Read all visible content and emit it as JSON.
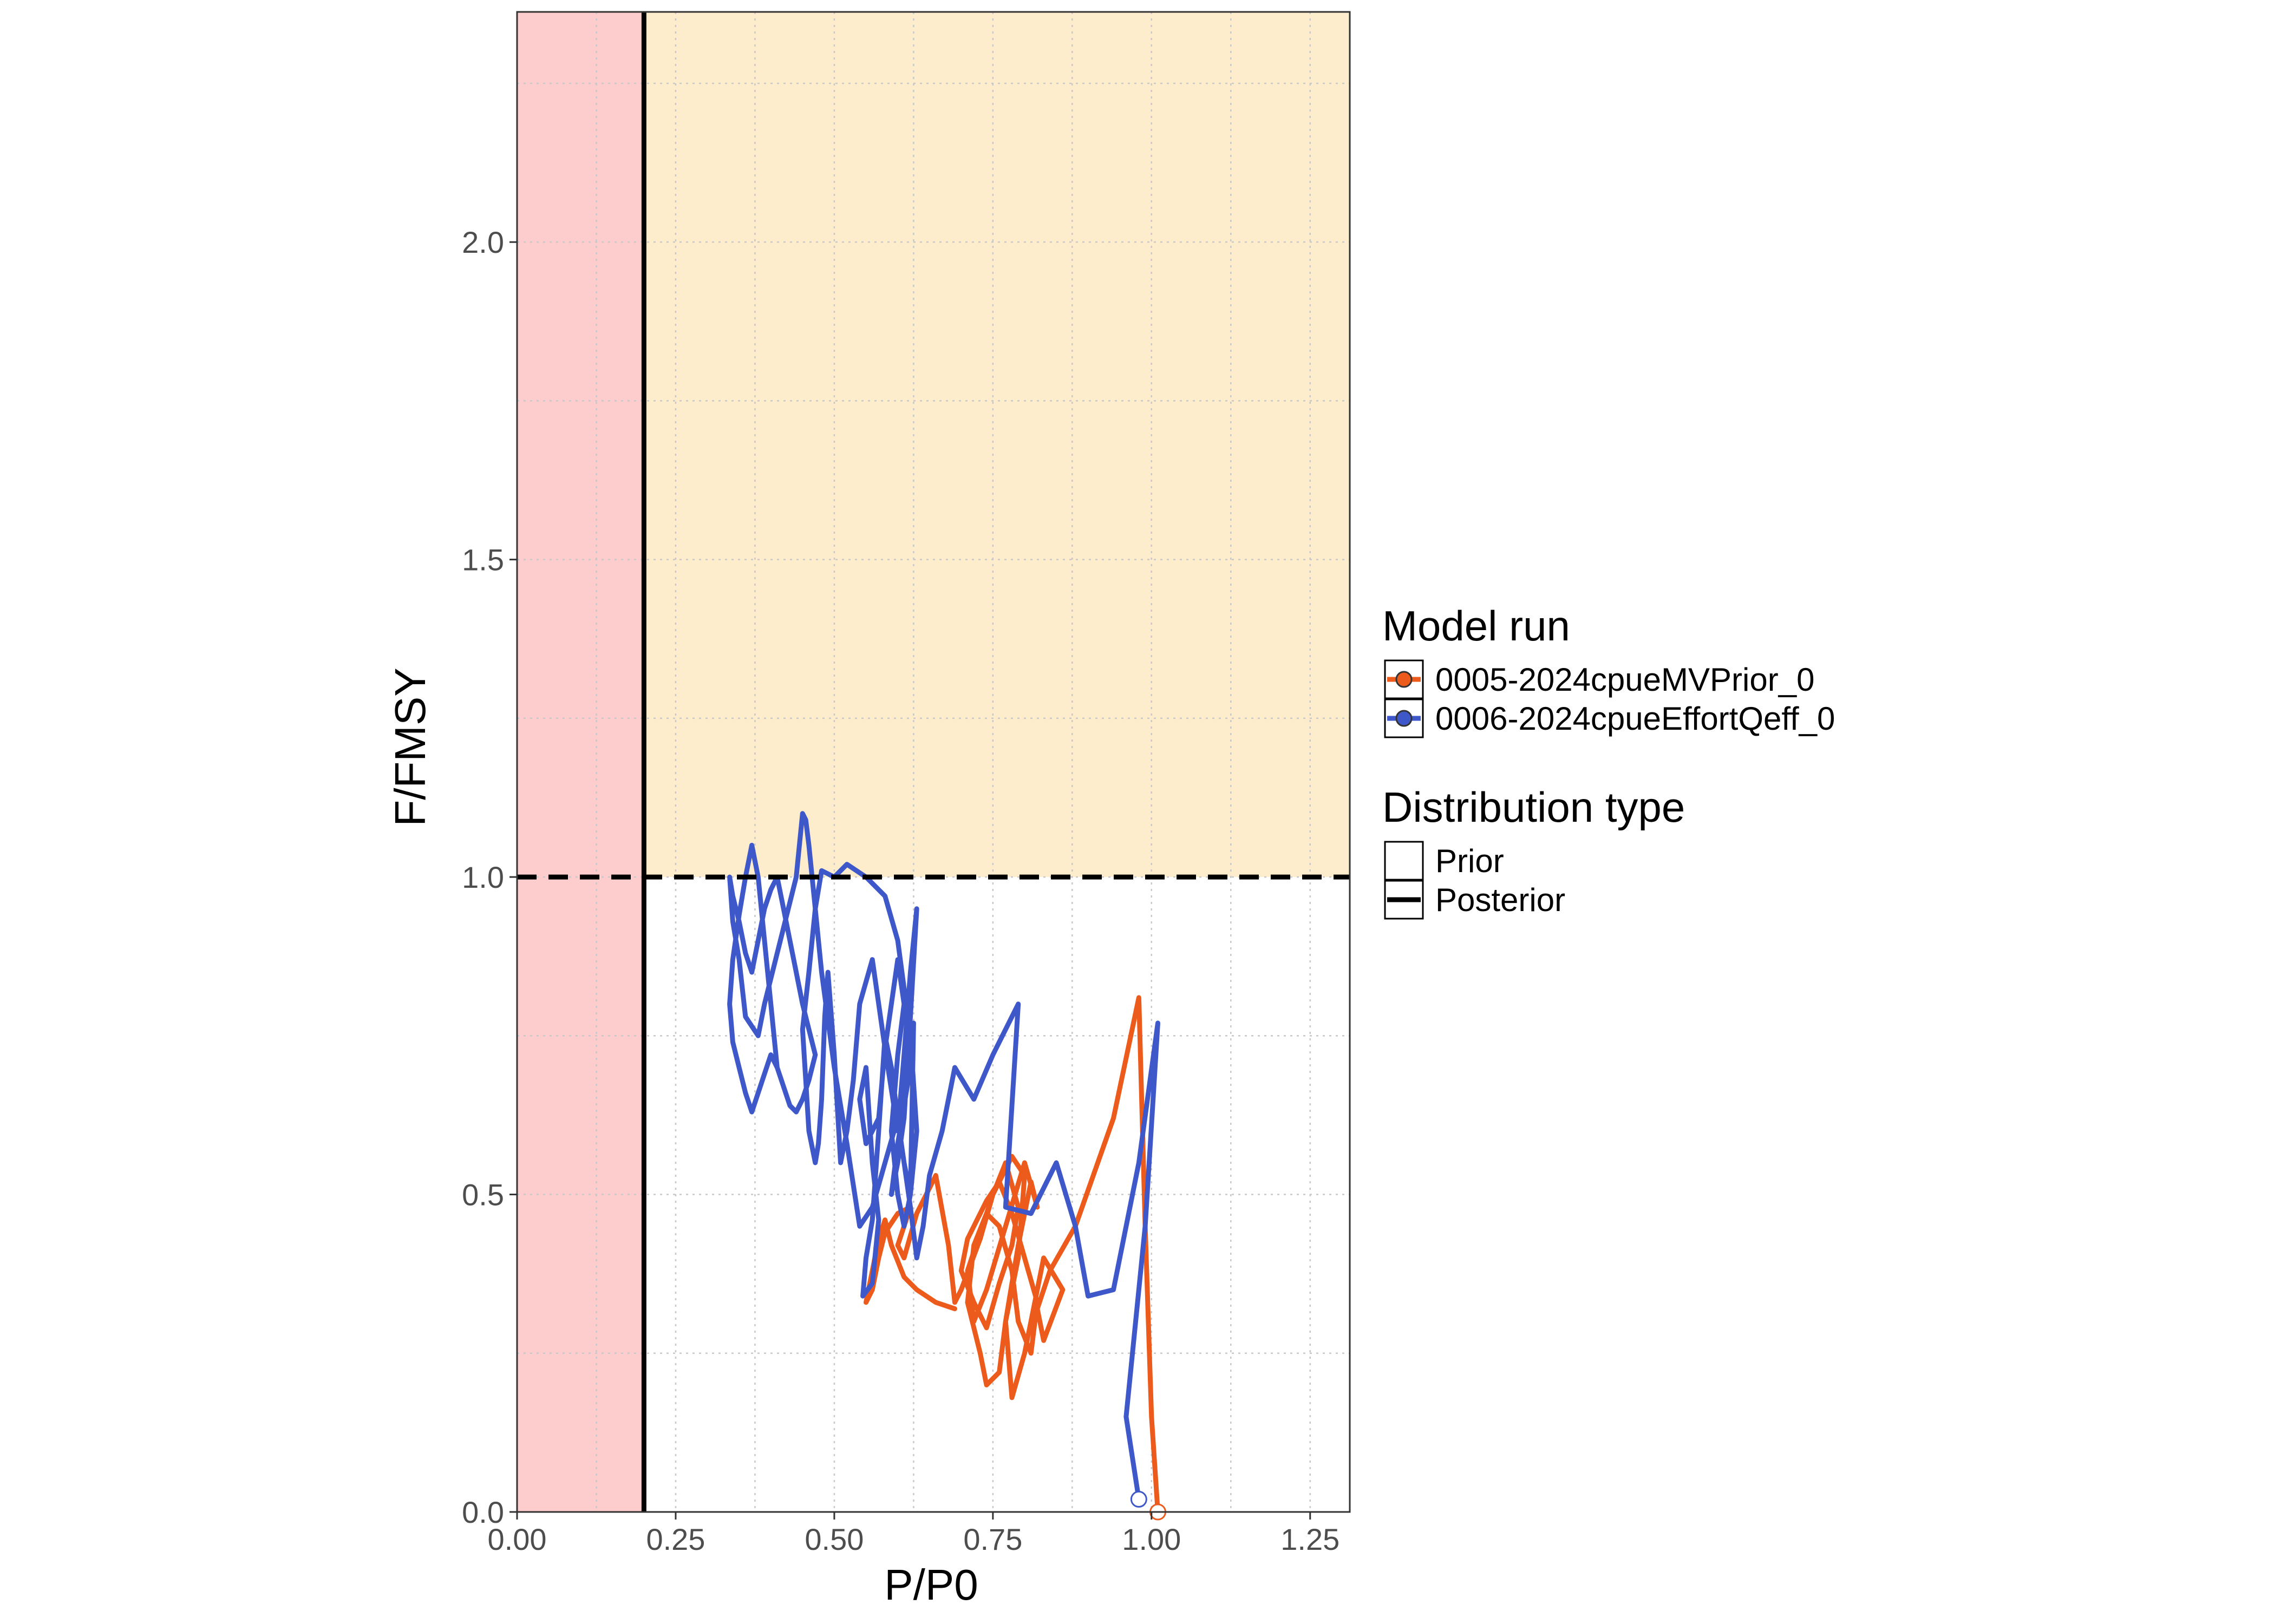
{
  "chart_data": {
    "type": "line",
    "xlabel": "P/P0",
    "ylabel": "F/FMSY",
    "xlim": [
      0,
      1.3125
    ],
    "ylim": [
      0,
      2.3625
    ],
    "x_ticks": [
      "0.00",
      "0.25",
      "0.50",
      "0.75",
      "1.00",
      "1.25"
    ],
    "y_ticks": [
      "0.0",
      "0.5",
      "1.0",
      "1.5",
      "2.0"
    ],
    "grid": true,
    "legend_placement": "right",
    "reference_lines": {
      "limit_reference_point_x": 0.2,
      "fmsy_y": 1.0
    },
    "regions": [
      {
        "name": "below-limit",
        "color": "#fdcccc"
      },
      {
        "name": "overfishing",
        "color": "#fdedcc"
      }
    ],
    "series": [
      {
        "name": "0005-2024cpueMVPrior_0",
        "color": "#ec5b1c",
        "x": [
          1.01,
          1.0,
          0.99,
          0.98,
          0.94,
          0.88,
          0.84,
          0.82,
          0.83,
          0.86,
          0.83,
          0.8,
          0.78,
          0.77,
          0.79,
          0.81,
          0.82,
          0.8,
          0.77,
          0.74,
          0.72,
          0.71,
          0.73,
          0.75,
          0.78,
          0.8,
          0.79,
          0.77,
          0.76,
          0.74,
          0.73,
          0.71,
          0.72,
          0.74,
          0.76,
          0.78,
          0.79,
          0.81,
          0.82,
          0.8,
          0.78,
          0.76,
          0.74,
          0.71,
          0.7,
          0.72,
          0.74,
          0.76,
          0.78,
          0.79,
          0.77,
          0.75,
          0.73,
          0.7,
          0.69,
          0.68,
          0.66,
          0.63,
          0.61,
          0.6,
          0.62,
          0.6,
          0.58,
          0.57,
          0.56,
          0.55,
          0.56,
          0.57,
          0.58,
          0.59,
          0.61,
          0.63,
          0.66,
          0.69
        ],
        "y": [
          0.0,
          0.15,
          0.45,
          0.81,
          0.62,
          0.45,
          0.38,
          0.32,
          0.27,
          0.35,
          0.4,
          0.25,
          0.18,
          0.3,
          0.42,
          0.52,
          0.48,
          0.55,
          0.45,
          0.35,
          0.3,
          0.38,
          0.44,
          0.5,
          0.56,
          0.53,
          0.4,
          0.3,
          0.22,
          0.2,
          0.25,
          0.33,
          0.42,
          0.47,
          0.45,
          0.38,
          0.3,
          0.25,
          0.33,
          0.4,
          0.47,
          0.52,
          0.49,
          0.43,
          0.38,
          0.33,
          0.29,
          0.36,
          0.42,
          0.48,
          0.55,
          0.5,
          0.43,
          0.35,
          0.33,
          0.42,
          0.53,
          0.47,
          0.4,
          0.42,
          0.48,
          0.47,
          0.44,
          0.4,
          0.35,
          0.33,
          0.38,
          0.43,
          0.46,
          0.42,
          0.37,
          0.35,
          0.33,
          0.32
        ]
      },
      {
        "name": "0006-2024cpueEffortQeff_0",
        "color": "#3f58c9",
        "x": [
          0.98,
          0.96,
          0.99,
          1.01,
          0.98,
          0.94,
          0.9,
          0.88,
          0.85,
          0.81,
          0.77,
          0.78,
          0.79,
          0.75,
          0.72,
          0.69,
          0.67,
          0.65,
          0.64,
          0.63,
          0.62,
          0.61,
          0.6,
          0.59,
          0.58,
          0.57,
          0.56,
          0.55,
          0.545,
          0.56,
          0.57,
          0.56,
          0.55,
          0.54,
          0.55,
          0.57,
          0.58,
          0.6,
          0.61,
          0.6,
          0.59,
          0.6,
          0.61,
          0.62,
          0.625,
          0.62,
          0.6,
          0.59,
          0.6,
          0.61,
          0.62,
          0.63,
          0.62,
          0.61,
          0.6,
          0.58,
          0.56,
          0.54,
          0.53,
          0.52,
          0.51,
          0.5,
          0.49,
          0.485,
          0.48,
          0.475,
          0.47,
          0.46,
          0.455,
          0.45,
          0.46,
          0.47,
          0.48,
          0.5,
          0.52,
          0.55,
          0.58,
          0.6,
          0.62,
          0.63,
          0.62,
          0.61,
          0.6,
          0.58,
          0.56,
          0.54,
          0.52,
          0.5,
          0.48,
          0.47,
          0.46,
          0.455,
          0.45,
          0.44,
          0.42,
          0.4,
          0.39,
          0.38,
          0.36,
          0.35,
          0.34,
          0.335,
          0.34,
          0.35,
          0.36,
          0.37,
          0.38,
          0.39,
          0.4,
          0.41,
          0.42,
          0.43,
          0.44,
          0.45,
          0.46,
          0.47,
          0.46,
          0.45,
          0.44,
          0.43,
          0.42,
          0.41,
          0.4,
          0.39,
          0.38,
          0.37,
          0.36,
          0.35,
          0.34,
          0.335,
          0.34,
          0.35,
          0.36,
          0.37,
          0.38,
          0.39,
          0.4,
          0.41
        ],
        "y": [
          0.02,
          0.15,
          0.45,
          0.77,
          0.55,
          0.35,
          0.34,
          0.45,
          0.55,
          0.47,
          0.48,
          0.64,
          0.8,
          0.72,
          0.65,
          0.7,
          0.6,
          0.53,
          0.45,
          0.4,
          0.48,
          0.55,
          0.62,
          0.7,
          0.75,
          0.6,
          0.46,
          0.4,
          0.34,
          0.36,
          0.46,
          0.55,
          0.7,
          0.65,
          0.58,
          0.62,
          0.73,
          0.87,
          0.8,
          0.72,
          0.6,
          0.5,
          0.45,
          0.5,
          0.77,
          0.7,
          0.58,
          0.5,
          0.55,
          0.62,
          0.78,
          0.95,
          0.85,
          0.72,
          0.6,
          0.73,
          0.87,
          0.8,
          0.68,
          0.6,
          0.55,
          0.72,
          0.85,
          0.78,
          0.65,
          0.58,
          0.55,
          0.6,
          0.68,
          0.76,
          0.85,
          0.95,
          1.01,
          1.0,
          1.02,
          1.0,
          0.97,
          0.9,
          0.75,
          0.6,
          0.5,
          0.55,
          0.62,
          0.55,
          0.48,
          0.45,
          0.58,
          0.7,
          0.85,
          0.95,
          1.05,
          1.09,
          1.1,
          1.0,
          0.92,
          0.84,
          0.8,
          0.75,
          0.78,
          0.87,
          0.93,
          1.0,
          0.97,
          0.93,
          0.88,
          0.85,
          0.9,
          0.95,
          0.98,
          1.0,
          0.95,
          0.9,
          0.85,
          0.8,
          0.76,
          0.72,
          0.68,
          0.65,
          0.63,
          0.64,
          0.67,
          0.7,
          0.72,
          0.69,
          0.66,
          0.63,
          0.66,
          0.7,
          0.74,
          0.8,
          0.87,
          0.94,
          1.0,
          1.05,
          1.0,
          0.9,
          0.8,
          0.7
        ]
      }
    ],
    "legend": {
      "model_run_title": "Model run",
      "model_runs": [
        "0005-2024cpueMVPrior_0",
        "0006-2024cpueEffortQeff_0"
      ],
      "distribution_title": "Distribution type",
      "distribution_types": [
        "Prior",
        "Posterior"
      ]
    }
  }
}
